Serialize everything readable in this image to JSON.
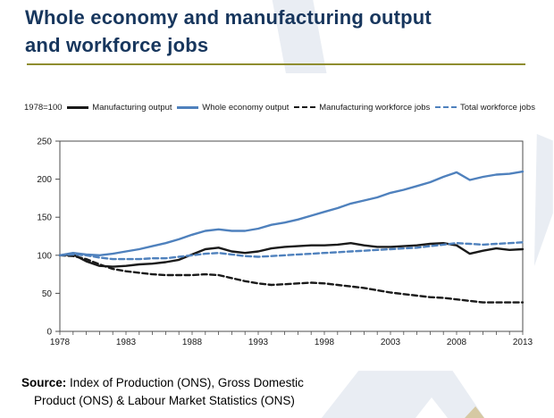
{
  "title": {
    "line1": "Whole economy and manufacturing output",
    "line2": "and workforce jobs"
  },
  "source": {
    "label": "Source:",
    "line1": " Index of Production (ONS), Gross Domestic",
    "line2": "Product (ONS) & Labour Market Statistics (ONS)"
  },
  "colors": {
    "title_navy": "#17365d",
    "divider_gold": "#8f8d2f",
    "series_blue": "#4f81bd",
    "series_black": "#1a1a1a",
    "decor_gray": "#e9edf3",
    "decor_beige": "#d6c9a3",
    "axis": "#4d4d4d"
  },
  "chart_data": {
    "type": "line",
    "axis_note": "1978=100",
    "x": [
      1978,
      1979,
      1980,
      1981,
      1982,
      1983,
      1984,
      1985,
      1986,
      1987,
      1988,
      1989,
      1990,
      1991,
      1992,
      1993,
      1994,
      1995,
      1996,
      1997,
      1998,
      1999,
      2000,
      2001,
      2002,
      2003,
      2004,
      2005,
      2006,
      2007,
      2008,
      2009,
      2010,
      2011,
      2012,
      2013
    ],
    "xticks": [
      1978,
      1983,
      1988,
      1993,
      1998,
      2003,
      2008,
      2013
    ],
    "ylim": [
      0,
      250
    ],
    "yticks": [
      0,
      50,
      100,
      150,
      200,
      250
    ],
    "grid": false,
    "legend_position": "top",
    "series": [
      {
        "name": "Manufacturing output",
        "color": "#1a1a1a",
        "style": "solid",
        "values": [
          100,
          101,
          92,
          86,
          85,
          86,
          88,
          89,
          91,
          94,
          101,
          108,
          110,
          105,
          103,
          105,
          109,
          111,
          112,
          113,
          113,
          114,
          116,
          113,
          111,
          111,
          112,
          113,
          115,
          116,
          113,
          102,
          106,
          109,
          107,
          108
        ]
      },
      {
        "name": "Whole economy output",
        "color": "#4f81bd",
        "style": "solid",
        "values": [
          100,
          103,
          101,
          100,
          102,
          105,
          108,
          112,
          116,
          121,
          127,
          132,
          134,
          132,
          132,
          135,
          140,
          143,
          147,
          152,
          157,
          162,
          168,
          172,
          176,
          182,
          186,
          191,
          196,
          203,
          209,
          199,
          203,
          206,
          207,
          210
        ]
      },
      {
        "name": "Manufacturing workforce jobs",
        "color": "#1a1a1a",
        "style": "dashed",
        "values": [
          100,
          99,
          95,
          88,
          82,
          79,
          77,
          75,
          74,
          74,
          74,
          75,
          74,
          70,
          66,
          63,
          61,
          62,
          63,
          64,
          63,
          61,
          59,
          57,
          54,
          51,
          49,
          47,
          45,
          44,
          42,
          40,
          38,
          38,
          38,
          38
        ]
      },
      {
        "name": "Total workforce jobs",
        "color": "#4f81bd",
        "style": "dashed",
        "values": [
          100,
          101,
          100,
          97,
          95,
          95,
          95,
          96,
          96,
          98,
          100,
          102,
          103,
          101,
          99,
          98,
          99,
          100,
          101,
          102,
          103,
          104,
          105,
          106,
          107,
          108,
          109,
          110,
          112,
          114,
          116,
          115,
          114,
          115,
          116,
          117
        ]
      }
    ]
  }
}
